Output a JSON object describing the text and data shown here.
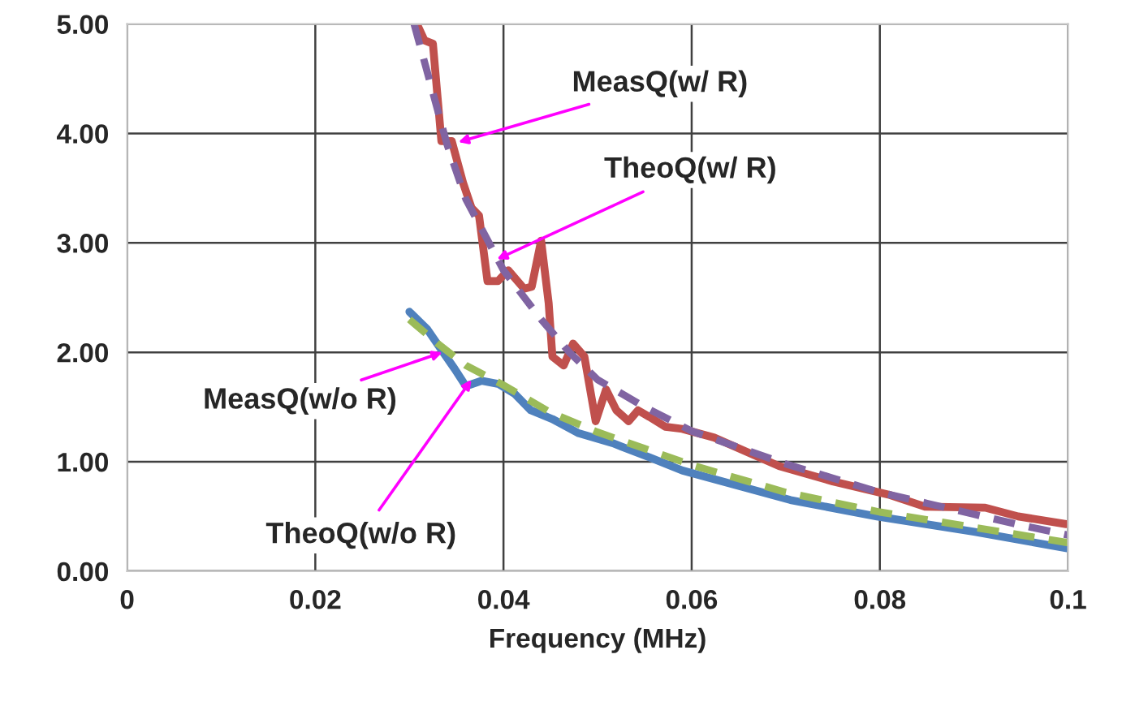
{
  "chart_data": {
    "type": "line",
    "xlabel": "Frequency (MHz)",
    "xlim": [
      0,
      0.1
    ],
    "ylim": [
      0,
      5
    ],
    "xticks": [
      0,
      0.02,
      0.04,
      0.06,
      0.08,
      0.1
    ],
    "yticks": [
      {
        "value": 0,
        "label": "0.00"
      },
      {
        "value": 1,
        "label": "1.00"
      },
      {
        "value": 2,
        "label": "2.00"
      },
      {
        "value": 3,
        "label": "3.00"
      },
      {
        "value": 4,
        "label": "4.00"
      },
      {
        "value": 5,
        "label": "5.00"
      }
    ],
    "grid": true,
    "legend": false,
    "marker": "none",
    "series": [
      {
        "color": "#c0504d",
        "line_style": "solid",
        "x": [
          0.0308,
          0.0316,
          0.0325,
          0.0334,
          0.0345,
          0.0357,
          0.0366,
          0.0374,
          0.0383,
          0.0394,
          0.0405,
          0.0422,
          0.043,
          0.044,
          0.0448,
          0.0452,
          0.0464,
          0.0474,
          0.0486,
          0.0498,
          0.0509,
          0.052,
          0.0533,
          0.0543,
          0.0555,
          0.0572,
          0.059,
          0.0624,
          0.0693,
          0.075,
          0.0809,
          0.0848,
          0.0912,
          0.0947,
          0.0998
        ],
        "values": [
          5.0,
          4.85,
          4.82,
          3.93,
          3.93,
          3.55,
          3.32,
          3.25,
          2.65,
          2.65,
          2.75,
          2.58,
          2.6,
          3.02,
          2.45,
          1.96,
          1.88,
          2.08,
          1.96,
          1.37,
          1.66,
          1.47,
          1.37,
          1.47,
          1.41,
          1.32,
          1.3,
          1.22,
          0.96,
          0.82,
          0.7,
          0.59,
          0.58,
          0.5,
          0.43
        ]
      },
      {
        "color": "#8064a2",
        "line_style": "dashed",
        "x": [
          0.0305,
          0.034,
          0.036,
          0.04,
          0.044,
          0.047,
          0.05,
          0.055,
          0.06,
          0.065,
          0.07,
          0.075,
          0.08,
          0.085,
          0.09,
          0.095,
          0.1
        ],
        "values": [
          5.0,
          3.9,
          3.4,
          2.75,
          2.3,
          2.0,
          1.75,
          1.5,
          1.28,
          1.13,
          0.98,
          0.85,
          0.72,
          0.62,
          0.52,
          0.42,
          0.33
        ]
      },
      {
        "color": "#4f81bd",
        "line_style": "solid",
        "x": [
          0.03,
          0.0319,
          0.0331,
          0.0348,
          0.036,
          0.0377,
          0.0395,
          0.0412,
          0.0429,
          0.0452,
          0.048,
          0.0516,
          0.0555,
          0.059,
          0.0705,
          0.0797,
          0.09,
          0.0998
        ],
        "values": [
          2.37,
          2.21,
          2.06,
          1.85,
          1.69,
          1.74,
          1.71,
          1.62,
          1.47,
          1.39,
          1.26,
          1.17,
          1.04,
          0.92,
          0.65,
          0.5,
          0.36,
          0.21
        ]
      },
      {
        "color": "#9bbb59",
        "line_style": "dashed",
        "x": [
          0.03,
          0.033,
          0.036,
          0.04,
          0.045,
          0.05,
          0.055,
          0.06,
          0.07,
          0.08,
          0.09,
          0.1
        ],
        "values": [
          2.3,
          2.08,
          1.88,
          1.7,
          1.45,
          1.27,
          1.12,
          0.97,
          0.72,
          0.54,
          0.4,
          0.26
        ]
      }
    ],
    "annotations": [
      {
        "text": "MeasQ(w/ R)",
        "x": 0.0352,
        "y": 3.92
      },
      {
        "text": "TheoQ(w/ R)",
        "x": 0.0393,
        "y": 2.85
      },
      {
        "text": "MeasQ(w/o R)",
        "x": 0.0335,
        "y": 2.0
      },
      {
        "text": "TheoQ(w/o R)",
        "x": 0.0366,
        "y": 1.75
      }
    ]
  }
}
